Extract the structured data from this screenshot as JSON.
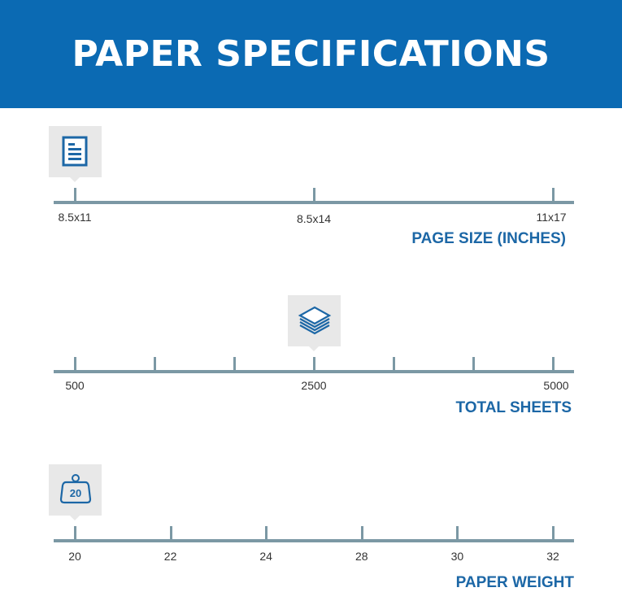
{
  "title": "PAPER SPECIFICATIONS",
  "colors": {
    "header": "#0b6ab3",
    "accent": "#1c67a6",
    "axis": "#7b98a4",
    "marker": "#e8e8e8"
  },
  "scales": [
    {
      "title": "PAGE SIZE (INCHES)",
      "icon": "document-icon",
      "ticks": [
        "8.5x11",
        "8.5x14",
        "11x17"
      ],
      "selected": "8.5x11"
    },
    {
      "title": "TOTAL SHEETS",
      "icon": "paper-stack-icon",
      "ticks": [
        "500",
        "",
        "",
        "2500",
        "",
        "",
        "5000"
      ],
      "selected": "2500"
    },
    {
      "title": "PAPER WEIGHT",
      "icon": "weight-icon",
      "icon_text": "20",
      "ticks": [
        "20",
        "22",
        "24",
        "28",
        "30",
        "32"
      ],
      "selected": "20"
    }
  ]
}
